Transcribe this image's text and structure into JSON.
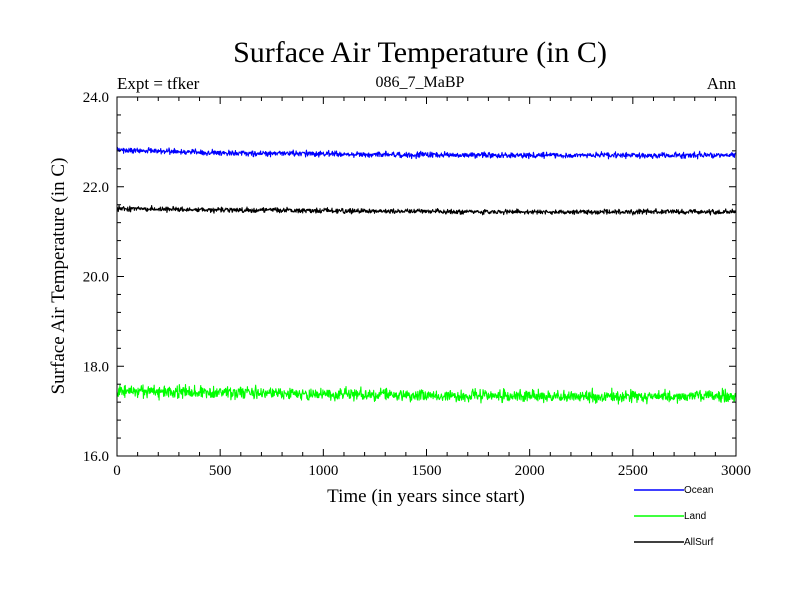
{
  "chart_data": {
    "type": "line",
    "title": "Surface Air Temperature (in C)",
    "subtitle": "086_7_MaBP",
    "left_note": "Expt = tfker",
    "right_note": "Ann",
    "xlabel": "Time (in years since start)",
    "ylabel": "Surface Air Temperature (in C)",
    "xlim": [
      0,
      3000
    ],
    "ylim": [
      16.0,
      24.0
    ],
    "x_ticks": [
      0,
      500,
      1000,
      1500,
      2000,
      2500,
      3000
    ],
    "x_tick_labels": [
      "0",
      "500",
      "1000",
      "1500",
      "2000",
      "2500",
      "3000"
    ],
    "y_ticks": [
      16.0,
      18.0,
      20.0,
      22.0,
      24.0
    ],
    "y_tick_labels": [
      "16.0",
      "18.0",
      "20.0",
      "22.0",
      "24.0"
    ],
    "grid": false,
    "legend_position": "bottom-right, below plot",
    "series": [
      {
        "name": "Ocean",
        "color": "#0000ff",
        "approx_x": [
          0,
          500,
          1000,
          1500,
          2000,
          2500,
          3000
        ],
        "approx_values": [
          22.82,
          22.76,
          22.73,
          22.71,
          22.7,
          22.7,
          22.71
        ],
        "noise_amplitude": 0.08
      },
      {
        "name": "Land",
        "color": "#00ff00",
        "approx_x": [
          0,
          500,
          1000,
          1500,
          2000,
          2500,
          3000
        ],
        "approx_values": [
          17.45,
          17.42,
          17.38,
          17.35,
          17.33,
          17.32,
          17.33
        ],
        "noise_amplitude": 0.17
      },
      {
        "name": "AllSurf",
        "color": "#000000",
        "approx_x": [
          0,
          500,
          1000,
          1500,
          2000,
          2500,
          3000
        ],
        "approx_values": [
          21.52,
          21.48,
          21.47,
          21.45,
          21.44,
          21.44,
          21.44
        ],
        "noise_amplitude": 0.07
      }
    ]
  }
}
